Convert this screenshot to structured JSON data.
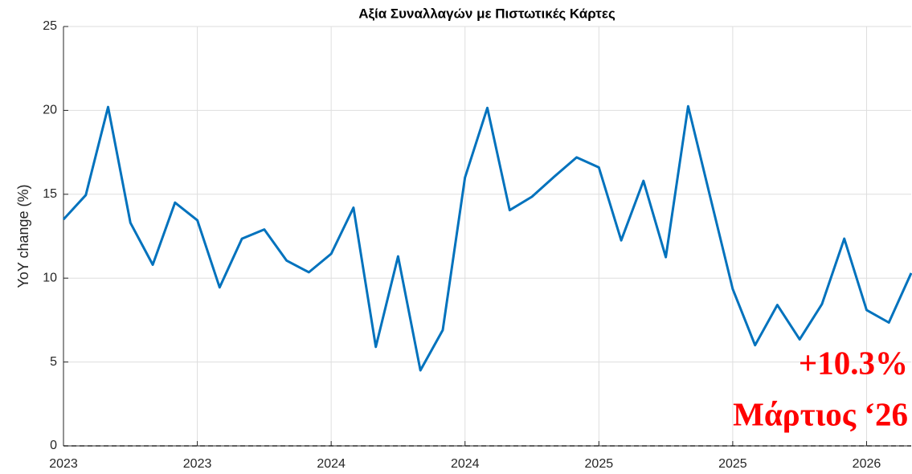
{
  "chart_data": {
    "type": "line",
    "title": "Αξία Συναλλαγών με Πιστωτικές Κάρτες",
    "ylabel": "YoY change (%)",
    "categories": [
      "2023",
      null,
      null,
      null,
      null,
      null,
      "2023",
      null,
      null,
      null,
      null,
      null,
      "2024",
      null,
      null,
      null,
      null,
      null,
      "2024",
      null,
      null,
      null,
      null,
      null,
      "2025",
      null,
      null,
      null,
      null,
      null,
      "2025",
      null,
      null,
      null,
      null,
      null,
      "2026",
      null,
      null
    ],
    "series": [
      {
        "name": "YoY change",
        "color": "#0072bd",
        "values": [
          13.5,
          14.95,
          20.2,
          13.3,
          10.8,
          14.5,
          13.45,
          9.45,
          12.35,
          12.9,
          11.05,
          10.35,
          11.45,
          14.2,
          5.9,
          11.3,
          4.5,
          6.9,
          16.0,
          20.15,
          14.05,
          14.85,
          16.05,
          17.2,
          16.6,
          12.25,
          15.8,
          11.25,
          20.25,
          14.8,
          9.35,
          6.0,
          8.4,
          6.35,
          8.45,
          12.35,
          8.1,
          7.35,
          10.3
        ]
      }
    ],
    "ylim": [
      0,
      25
    ],
    "yticks": [
      0,
      5,
      10,
      15,
      20,
      25
    ],
    "grid": true,
    "hline": 0,
    "annotations": [
      "+10.3%",
      "Μάρτιος ‘26"
    ],
    "annotation_color": "#ff0000"
  }
}
